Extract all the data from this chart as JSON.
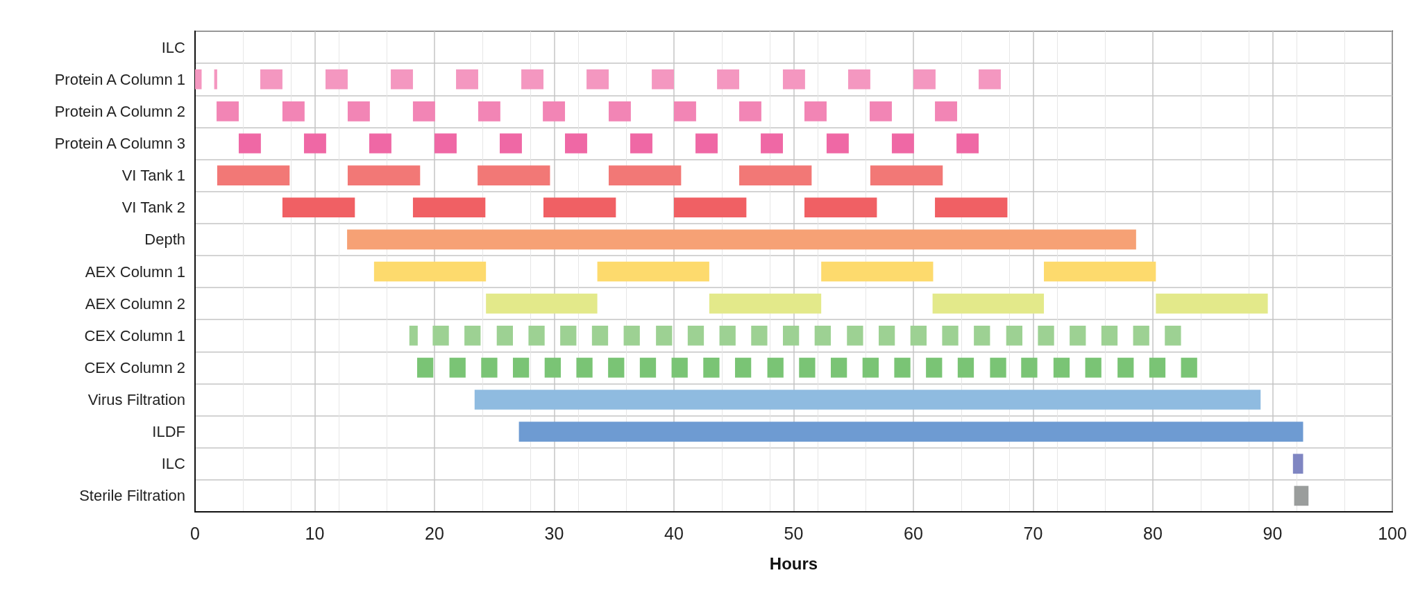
{
  "chart_data": {
    "type": "bar",
    "orientation": "horizontal",
    "xlabel": "Hours",
    "xlim": [
      0,
      100
    ],
    "xticks": [
      0,
      10,
      20,
      30,
      40,
      50,
      60,
      70,
      80,
      90,
      100
    ],
    "grid": true,
    "categories": [
      "ILC",
      "Protein A Column 1",
      "Protein A Column 2",
      "Protein A Column 3",
      "VI Tank 1",
      "VI Tank 2",
      "Depth",
      "AEX Column 1",
      "AEX Column 2",
      "CEX Column 1",
      "CEX Column 2",
      "Virus Filtration",
      "ILDF",
      "ILC",
      "Sterile Filtration"
    ],
    "series": [
      {
        "colors": [
          null,
          "#f497c0",
          "#f285b5",
          "#ef68a5",
          "#f27876",
          "#f06064",
          "#f6a175",
          "#fdda6d",
          "#e3e98a",
          "#9dd193",
          "#7ac475",
          "#8fbbe0",
          "#6e9bd2",
          "#7f86c2",
          "#9a9d9c"
        ],
        "base": [
          null,
          0,
          1.8,
          3.65,
          1.85,
          7.3,
          12.7,
          14.95,
          24.3,
          17.9,
          18.55,
          23.35,
          27.05,
          91.7,
          91.8
        ],
        "values": [
          null,
          0.55,
          1.85,
          1.85,
          6.05,
          6.05,
          65.9,
          9.35,
          9.3,
          0.7,
          1.35,
          65.65,
          65.5,
          0.85,
          1.2
        ]
      },
      {
        "colors": [
          null,
          "#f497c0",
          "#f285b5",
          "#ef68a5",
          "#f27876",
          "#f06064",
          null,
          "#fdda6d",
          "#e3e98a",
          "#9dd193",
          "#7ac475",
          null,
          null,
          null,
          null
        ],
        "base": [
          null,
          1.6,
          7.3,
          9.1,
          12.75,
          18.2,
          null,
          33.6,
          42.95,
          19.85,
          21.25,
          null,
          null,
          null,
          null
        ],
        "values": [
          null,
          0.25,
          1.85,
          1.85,
          6.05,
          6.05,
          null,
          9.35,
          9.35,
          1.35,
          1.35,
          null,
          null,
          null,
          null
        ]
      },
      {
        "colors": [
          null,
          "#f497c0",
          "#f285b5",
          "#ef68a5",
          "#f27876",
          "#f06064",
          null,
          "#fdda6d",
          "#e3e98a",
          "#9dd193",
          "#7ac475",
          null,
          null,
          null,
          null
        ],
        "base": [
          null,
          5.45,
          12.75,
          14.55,
          23.6,
          29.1,
          null,
          52.3,
          61.6,
          22.5,
          23.9,
          null,
          null,
          null,
          null
        ],
        "values": [
          null,
          1.85,
          1.85,
          1.85,
          6.05,
          6.05,
          null,
          9.35,
          9.3,
          1.35,
          1.35,
          null,
          null,
          null,
          null
        ]
      },
      {
        "colors": [
          null,
          "#f497c0",
          "#f285b5",
          "#ef68a5",
          "#f27876",
          "#f06064",
          null,
          "#fdda6d",
          "#e3e98a",
          "#9dd193",
          "#7ac475",
          null,
          null,
          null,
          null
        ],
        "base": [
          null,
          10.9,
          18.2,
          20.0,
          34.55,
          40.0,
          null,
          70.9,
          80.25,
          25.2,
          26.55,
          null,
          null,
          null,
          null
        ],
        "values": [
          null,
          1.85,
          1.85,
          1.85,
          6.05,
          6.05,
          null,
          9.35,
          9.35,
          1.35,
          1.35,
          null,
          null,
          null,
          null
        ]
      },
      {
        "colors": [
          null,
          "#f497c0",
          "#f285b5",
          "#ef68a5",
          "#f27876",
          "#f06064",
          null,
          null,
          null,
          "#9dd193",
          "#7ac475",
          null,
          null,
          null,
          null
        ],
        "base": [
          null,
          16.35,
          23.65,
          25.45,
          45.45,
          50.9,
          null,
          null,
          null,
          27.85,
          29.2,
          null,
          null,
          null,
          null
        ],
        "values": [
          null,
          1.85,
          1.85,
          1.85,
          6.05,
          6.05,
          null,
          null,
          null,
          1.35,
          1.35,
          null,
          null,
          null,
          null
        ]
      },
      {
        "colors": [
          null,
          "#f497c0",
          "#f285b5",
          "#ef68a5",
          "#f27876",
          "#f06064",
          null,
          null,
          null,
          "#9dd193",
          "#7ac475",
          null,
          null,
          null,
          null
        ],
        "base": [
          null,
          21.8,
          29.05,
          30.9,
          56.4,
          61.8,
          null,
          null,
          null,
          30.5,
          31.85,
          null,
          null,
          null,
          null
        ],
        "values": [
          null,
          1.85,
          1.85,
          1.85,
          6.05,
          6.05,
          null,
          null,
          null,
          1.35,
          1.35,
          null,
          null,
          null,
          null
        ]
      },
      {
        "colors": [
          null,
          "#f497c0",
          "#f285b5",
          "#ef68a5",
          null,
          null,
          null,
          null,
          null,
          "#9dd193",
          "#7ac475",
          null,
          null,
          null,
          null
        ],
        "base": [
          null,
          27.25,
          34.55,
          36.35,
          null,
          null,
          null,
          null,
          null,
          33.15,
          34.5,
          null,
          null,
          null,
          null
        ],
        "values": [
          null,
          1.85,
          1.85,
          1.85,
          null,
          null,
          null,
          null,
          null,
          1.35,
          1.35,
          null,
          null,
          null,
          null
        ]
      },
      {
        "colors": [
          null,
          "#f497c0",
          "#f285b5",
          "#ef68a5",
          null,
          null,
          null,
          null,
          null,
          "#9dd193",
          "#7ac475",
          null,
          null,
          null,
          null
        ],
        "base": [
          null,
          32.7,
          40.0,
          41.8,
          null,
          null,
          null,
          null,
          null,
          35.8,
          37.15,
          null,
          null,
          null,
          null
        ],
        "values": [
          null,
          1.85,
          1.85,
          1.85,
          null,
          null,
          null,
          null,
          null,
          1.35,
          1.35,
          null,
          null,
          null,
          null
        ]
      },
      {
        "colors": [
          null,
          "#f497c0",
          "#f285b5",
          "#ef68a5",
          null,
          null,
          null,
          null,
          null,
          "#9dd193",
          "#7ac475",
          null,
          null,
          null,
          null
        ],
        "base": [
          null,
          38.15,
          45.45,
          47.25,
          null,
          null,
          null,
          null,
          null,
          38.5,
          39.8,
          null,
          null,
          null,
          null
        ],
        "values": [
          null,
          1.85,
          1.85,
          1.85,
          null,
          null,
          null,
          null,
          null,
          1.35,
          1.35,
          null,
          null,
          null,
          null
        ]
      },
      {
        "colors": [
          null,
          "#f497c0",
          "#f285b5",
          "#ef68a5",
          null,
          null,
          null,
          null,
          null,
          "#9dd193",
          "#7ac475",
          null,
          null,
          null,
          null
        ],
        "base": [
          null,
          43.6,
          50.9,
          52.75,
          null,
          null,
          null,
          null,
          null,
          41.15,
          42.45,
          null,
          null,
          null,
          null
        ],
        "values": [
          null,
          1.85,
          1.85,
          1.85,
          null,
          null,
          null,
          null,
          null,
          1.35,
          1.35,
          null,
          null,
          null,
          null
        ]
      },
      {
        "colors": [
          null,
          "#f497c0",
          "#f285b5",
          "#ef68a5",
          null,
          null,
          null,
          null,
          null,
          "#9dd193",
          "#7ac475",
          null,
          null,
          null,
          null
        ],
        "base": [
          null,
          49.1,
          56.35,
          58.2,
          null,
          null,
          null,
          null,
          null,
          43.8,
          45.1,
          null,
          null,
          null,
          null
        ],
        "values": [
          null,
          1.85,
          1.85,
          1.85,
          null,
          null,
          null,
          null,
          null,
          1.35,
          1.35,
          null,
          null,
          null,
          null
        ]
      },
      {
        "colors": [
          null,
          "#f497c0",
          "#f285b5",
          "#ef68a5",
          null,
          null,
          null,
          null,
          null,
          "#9dd193",
          "#7ac475",
          null,
          null,
          null,
          null
        ],
        "base": [
          null,
          54.55,
          61.8,
          63.6,
          null,
          null,
          null,
          null,
          null,
          46.45,
          47.8,
          null,
          null,
          null,
          null
        ],
        "values": [
          null,
          1.85,
          1.85,
          1.85,
          null,
          null,
          null,
          null,
          null,
          1.35,
          1.35,
          null,
          null,
          null,
          null
        ]
      },
      {
        "colors": [
          null,
          "#f497c0",
          null,
          null,
          null,
          null,
          null,
          null,
          null,
          "#9dd193",
          "#7ac475",
          null,
          null,
          null,
          null
        ],
        "base": [
          null,
          60,
          null,
          null,
          null,
          null,
          null,
          null,
          null,
          49.1,
          50.45,
          null,
          null,
          null,
          null
        ],
        "values": [
          null,
          1.85,
          null,
          null,
          null,
          null,
          null,
          null,
          null,
          1.35,
          1.35,
          null,
          null,
          null,
          null
        ]
      },
      {
        "colors": [
          null,
          "#f497c0",
          null,
          null,
          null,
          null,
          null,
          null,
          null,
          "#9dd193",
          "#7ac475",
          null,
          null,
          null,
          null
        ],
        "base": [
          null,
          65.45,
          null,
          null,
          null,
          null,
          null,
          null,
          null,
          51.75,
          53.1,
          null,
          null,
          null,
          null
        ],
        "values": [
          null,
          1.85,
          null,
          null,
          null,
          null,
          null,
          null,
          null,
          1.35,
          1.35,
          null,
          null,
          null,
          null
        ]
      },
      {
        "colors": [
          null,
          null,
          null,
          null,
          null,
          null,
          null,
          null,
          null,
          "#9dd193",
          "#7ac475",
          null,
          null,
          null,
          null
        ],
        "base": [
          null,
          null,
          null,
          null,
          null,
          null,
          null,
          null,
          null,
          54.45,
          55.75,
          null,
          null,
          null,
          null
        ],
        "values": [
          null,
          null,
          null,
          null,
          null,
          null,
          null,
          null,
          null,
          1.35,
          1.35,
          null,
          null,
          null,
          null
        ]
      },
      {
        "colors": [
          null,
          null,
          null,
          null,
          null,
          null,
          null,
          null,
          null,
          "#9dd193",
          "#7ac475",
          null,
          null,
          null,
          null
        ],
        "base": [
          null,
          null,
          null,
          null,
          null,
          null,
          null,
          null,
          null,
          57.1,
          58.4,
          null,
          null,
          null,
          null
        ],
        "values": [
          null,
          null,
          null,
          null,
          null,
          null,
          null,
          null,
          null,
          1.35,
          1.35,
          null,
          null,
          null,
          null
        ]
      },
      {
        "colors": [
          null,
          null,
          null,
          null,
          null,
          null,
          null,
          null,
          null,
          "#9dd193",
          "#7ac475",
          null,
          null,
          null,
          null
        ],
        "base": [
          null,
          null,
          null,
          null,
          null,
          null,
          null,
          null,
          null,
          59.75,
          61.05,
          null,
          null,
          null,
          null
        ],
        "values": [
          null,
          null,
          null,
          null,
          null,
          null,
          null,
          null,
          null,
          1.35,
          1.35,
          null,
          null,
          null,
          null
        ]
      },
      {
        "colors": [
          null,
          null,
          null,
          null,
          null,
          null,
          null,
          null,
          null,
          "#9dd193",
          "#7ac475",
          null,
          null,
          null,
          null
        ],
        "base": [
          null,
          null,
          null,
          null,
          null,
          null,
          null,
          null,
          null,
          62.4,
          63.7,
          null,
          null,
          null,
          null
        ],
        "values": [
          null,
          null,
          null,
          null,
          null,
          null,
          null,
          null,
          null,
          1.35,
          1.35,
          null,
          null,
          null,
          null
        ]
      },
      {
        "colors": [
          null,
          null,
          null,
          null,
          null,
          null,
          null,
          null,
          null,
          "#9dd193",
          "#7ac475",
          null,
          null,
          null,
          null
        ],
        "base": [
          null,
          null,
          null,
          null,
          null,
          null,
          null,
          null,
          null,
          65.05,
          66.4,
          null,
          null,
          null,
          null
        ],
        "values": [
          null,
          null,
          null,
          null,
          null,
          null,
          null,
          null,
          null,
          1.35,
          1.35,
          null,
          null,
          null,
          null
        ]
      },
      {
        "colors": [
          null,
          null,
          null,
          null,
          null,
          null,
          null,
          null,
          null,
          "#9dd193",
          "#7ac475",
          null,
          null,
          null,
          null
        ],
        "base": [
          null,
          null,
          null,
          null,
          null,
          null,
          null,
          null,
          null,
          67.75,
          69.0,
          null,
          null,
          null,
          null
        ],
        "values": [
          null,
          null,
          null,
          null,
          null,
          null,
          null,
          null,
          null,
          1.35,
          1.35,
          null,
          null,
          null,
          null
        ]
      },
      {
        "colors": [
          null,
          null,
          null,
          null,
          null,
          null,
          null,
          null,
          null,
          "#9dd193",
          "#7ac475",
          null,
          null,
          null,
          null
        ],
        "base": [
          null,
          null,
          null,
          null,
          null,
          null,
          null,
          null,
          null,
          70.4,
          71.7,
          null,
          null,
          null,
          null
        ],
        "values": [
          null,
          null,
          null,
          null,
          null,
          null,
          null,
          null,
          null,
          1.35,
          1.35,
          null,
          null,
          null,
          null
        ]
      },
      {
        "colors": [
          null,
          null,
          null,
          null,
          null,
          null,
          null,
          null,
          null,
          "#9dd193",
          "#7ac475",
          null,
          null,
          null,
          null
        ],
        "base": [
          null,
          null,
          null,
          null,
          null,
          null,
          null,
          null,
          null,
          73.05,
          74.35,
          null,
          null,
          null,
          null
        ],
        "values": [
          null,
          null,
          null,
          null,
          null,
          null,
          null,
          null,
          null,
          1.35,
          1.35,
          null,
          null,
          null,
          null
        ]
      },
      {
        "colors": [
          null,
          null,
          null,
          null,
          null,
          null,
          null,
          null,
          null,
          "#9dd193",
          "#7ac475",
          null,
          null,
          null,
          null
        ],
        "base": [
          null,
          null,
          null,
          null,
          null,
          null,
          null,
          null,
          null,
          75.7,
          77.05,
          null,
          null,
          null,
          null
        ],
        "values": [
          null,
          null,
          null,
          null,
          null,
          null,
          null,
          null,
          null,
          1.35,
          1.35,
          null,
          null,
          null,
          null
        ]
      },
      {
        "colors": [
          null,
          null,
          null,
          null,
          null,
          null,
          null,
          null,
          null,
          "#9dd193",
          "#7ac475",
          null,
          null,
          null,
          null
        ],
        "base": [
          null,
          null,
          null,
          null,
          null,
          null,
          null,
          null,
          null,
          78.35,
          79.7,
          null,
          null,
          null,
          null
        ],
        "values": [
          null,
          null,
          null,
          null,
          null,
          null,
          null,
          null,
          null,
          1.35,
          1.35,
          null,
          null,
          null,
          null
        ]
      },
      {
        "colors": [
          null,
          null,
          null,
          null,
          null,
          null,
          null,
          null,
          null,
          "#9dd193",
          "#7ac475",
          null,
          null,
          null,
          null
        ],
        "base": [
          null,
          null,
          null,
          null,
          null,
          null,
          null,
          null,
          null,
          81.0,
          82.35,
          null,
          null,
          null,
          null
        ],
        "values": [
          null,
          null,
          null,
          null,
          null,
          null,
          null,
          null,
          null,
          1.35,
          1.35,
          null,
          null,
          null,
          null
        ]
      }
    ]
  }
}
